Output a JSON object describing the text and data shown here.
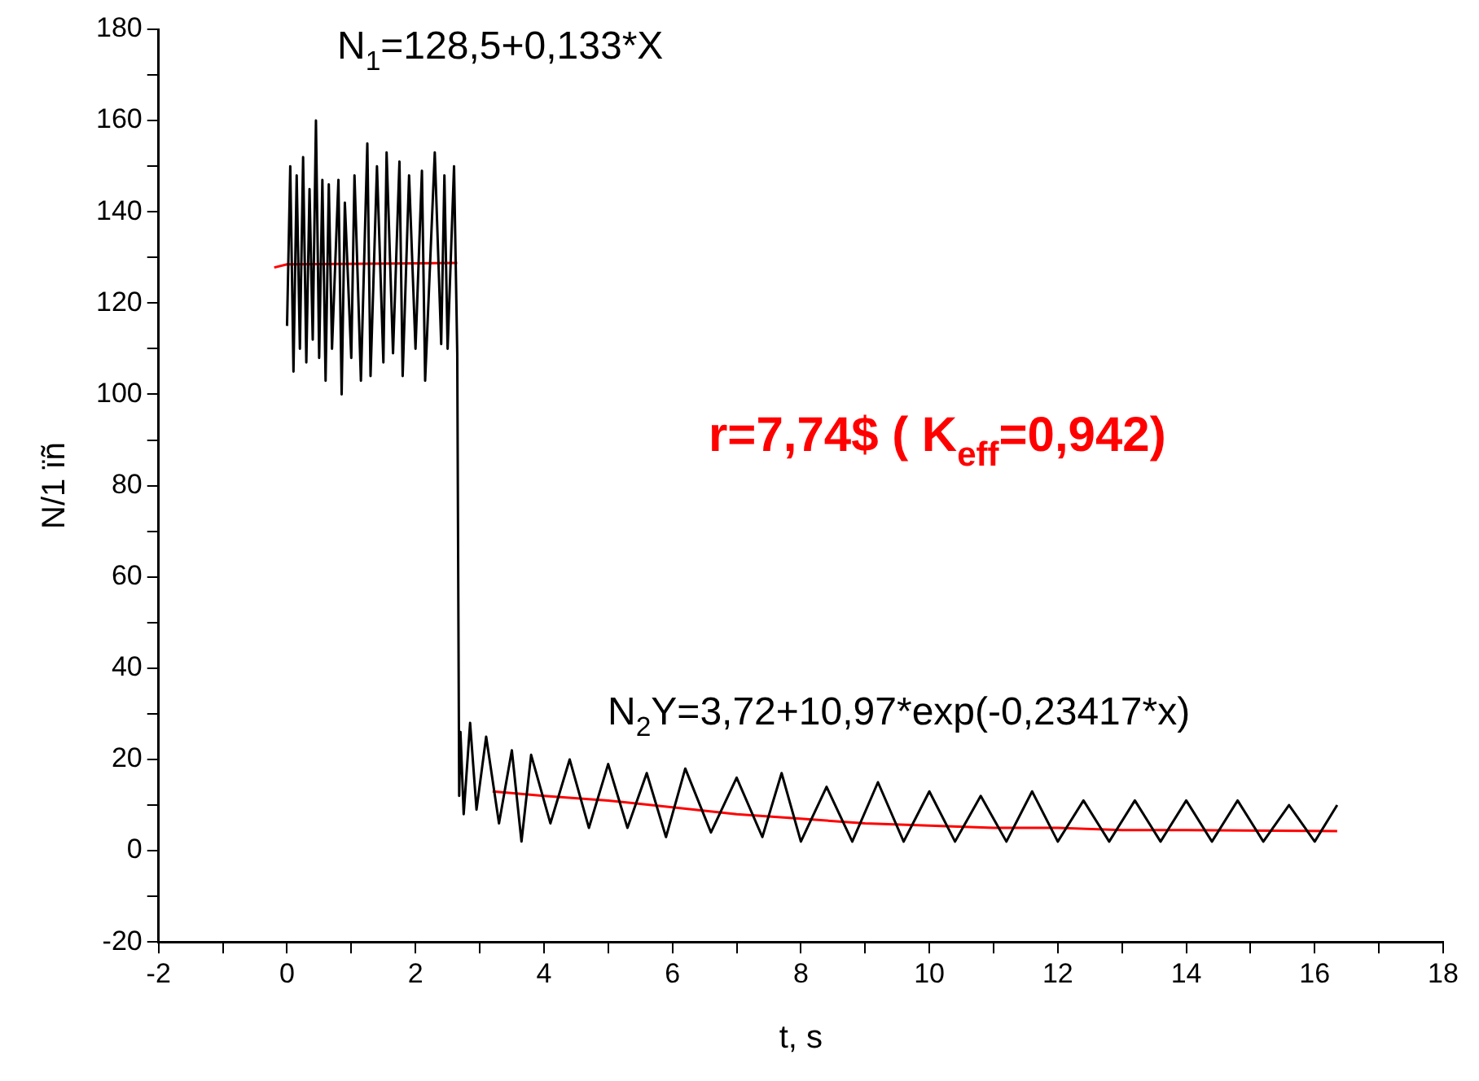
{
  "chart_data": {
    "type": "line",
    "xlabel": "t, s",
    "ylabel": "N/1 ïñ",
    "grid": false,
    "legend": false,
    "marker": "none",
    "line_style": "solid",
    "xlim": [
      -2,
      18
    ],
    "xticks": [
      -2,
      {
        "value": -1,
        "label": null
      },
      0,
      {
        "value": 1,
        "label": null
      },
      2,
      {
        "value": 3,
        "label": null
      },
      4,
      {
        "value": 5,
        "label": null
      },
      6,
      {
        "value": 7,
        "label": null
      },
      8,
      {
        "value": 9,
        "label": null
      },
      10,
      {
        "value": 11,
        "label": null
      },
      12,
      {
        "value": 13,
        "label": null
      },
      14,
      {
        "value": 15,
        "label": null
      },
      16,
      {
        "value": 17,
        "label": null
      },
      18
    ],
    "ylim": [
      -20,
      180
    ],
    "yticks": [
      -20,
      {
        "value": -10,
        "label": null
      },
      0,
      {
        "value": 10,
        "label": null
      },
      20,
      {
        "value": 30,
        "label": null
      },
      40,
      {
        "value": 50,
        "label": null
      },
      60,
      {
        "value": 70,
        "label": null
      },
      80,
      {
        "value": 90,
        "label": null
      },
      100,
      {
        "value": 110,
        "label": null
      },
      120,
      {
        "value": 130,
        "label": null
      },
      140,
      {
        "value": 150,
        "label": null
      },
      160,
      {
        "value": 170,
        "label": null
      },
      180
    ],
    "annotations": [
      "N$_{1}$=128,5+0,133*X",
      "r=7,74$ ( K$_{eff}$=0,942)",
      "N$_{2}$Y=3,72+10,97*exp(-0,23417*x)"
    ],
    "series": [
      {
        "color": "#000000",
        "x": [
          0,
          0.05,
          0.1,
          0.15,
          0.2,
          0.25,
          0.3,
          0.35,
          0.4,
          0.45,
          0.5,
          0.55,
          0.6,
          0.65,
          0.7,
          0.8,
          0.85,
          0.9,
          1.0,
          1.05,
          1.15,
          1.25,
          1.3,
          1.4,
          1.5,
          1.55,
          1.65,
          1.75,
          1.8,
          1.9,
          2.0,
          2.1,
          2.15,
          2.3,
          2.4,
          2.45,
          2.5,
          2.6,
          2.65,
          2.68,
          2.7,
          2.75,
          2.85,
          2.95,
          3.1,
          3.3,
          3.5,
          3.65,
          3.8,
          4.1,
          4.4,
          4.7,
          5.0,
          5.3,
          5.6,
          5.9,
          6.2,
          6.6,
          7.0,
          7.4,
          7.7,
          8.0,
          8.4,
          8.8,
          9.2,
          9.6,
          10.0,
          10.4,
          10.8,
          11.2,
          11.6,
          12.0,
          12.4,
          12.8,
          13.2,
          13.6,
          14.0,
          14.4,
          14.8,
          15.2,
          15.6,
          16.0,
          16.35
        ],
        "values": [
          115,
          150,
          105,
          148,
          110,
          152,
          107,
          145,
          112,
          160,
          108,
          147,
          103,
          146,
          110,
          147,
          100,
          142,
          108,
          148,
          103,
          155,
          104,
          150,
          107,
          153,
          109,
          151,
          104,
          148,
          110,
          149,
          103,
          153,
          111,
          148,
          110,
          150,
          109,
          12,
          26,
          8,
          28,
          9,
          25,
          6,
          22,
          2,
          21,
          6,
          20,
          5,
          19,
          5,
          17,
          3,
          18,
          4,
          16,
          3,
          17,
          2,
          14,
          2,
          15,
          2,
          13,
          2,
          12,
          2,
          13,
          2,
          11,
          2,
          11,
          2,
          11,
          2,
          11,
          2,
          10,
          2,
          10
        ]
      },
      {
        "color": "#ff0000",
        "x": [
          -0.2,
          0,
          2.65
        ],
        "values": [
          127.8,
          128.5,
          128.8
        ]
      },
      {
        "color": "#ff0000",
        "x": [
          3.2,
          4,
          5,
          6,
          7,
          8,
          9,
          10,
          11,
          12,
          13,
          14,
          16.35
        ],
        "values": [
          13,
          12,
          11,
          9.5,
          8,
          7,
          6,
          5.5,
          5,
          5,
          4.5,
          4.5,
          4.3
        ]
      }
    ]
  }
}
